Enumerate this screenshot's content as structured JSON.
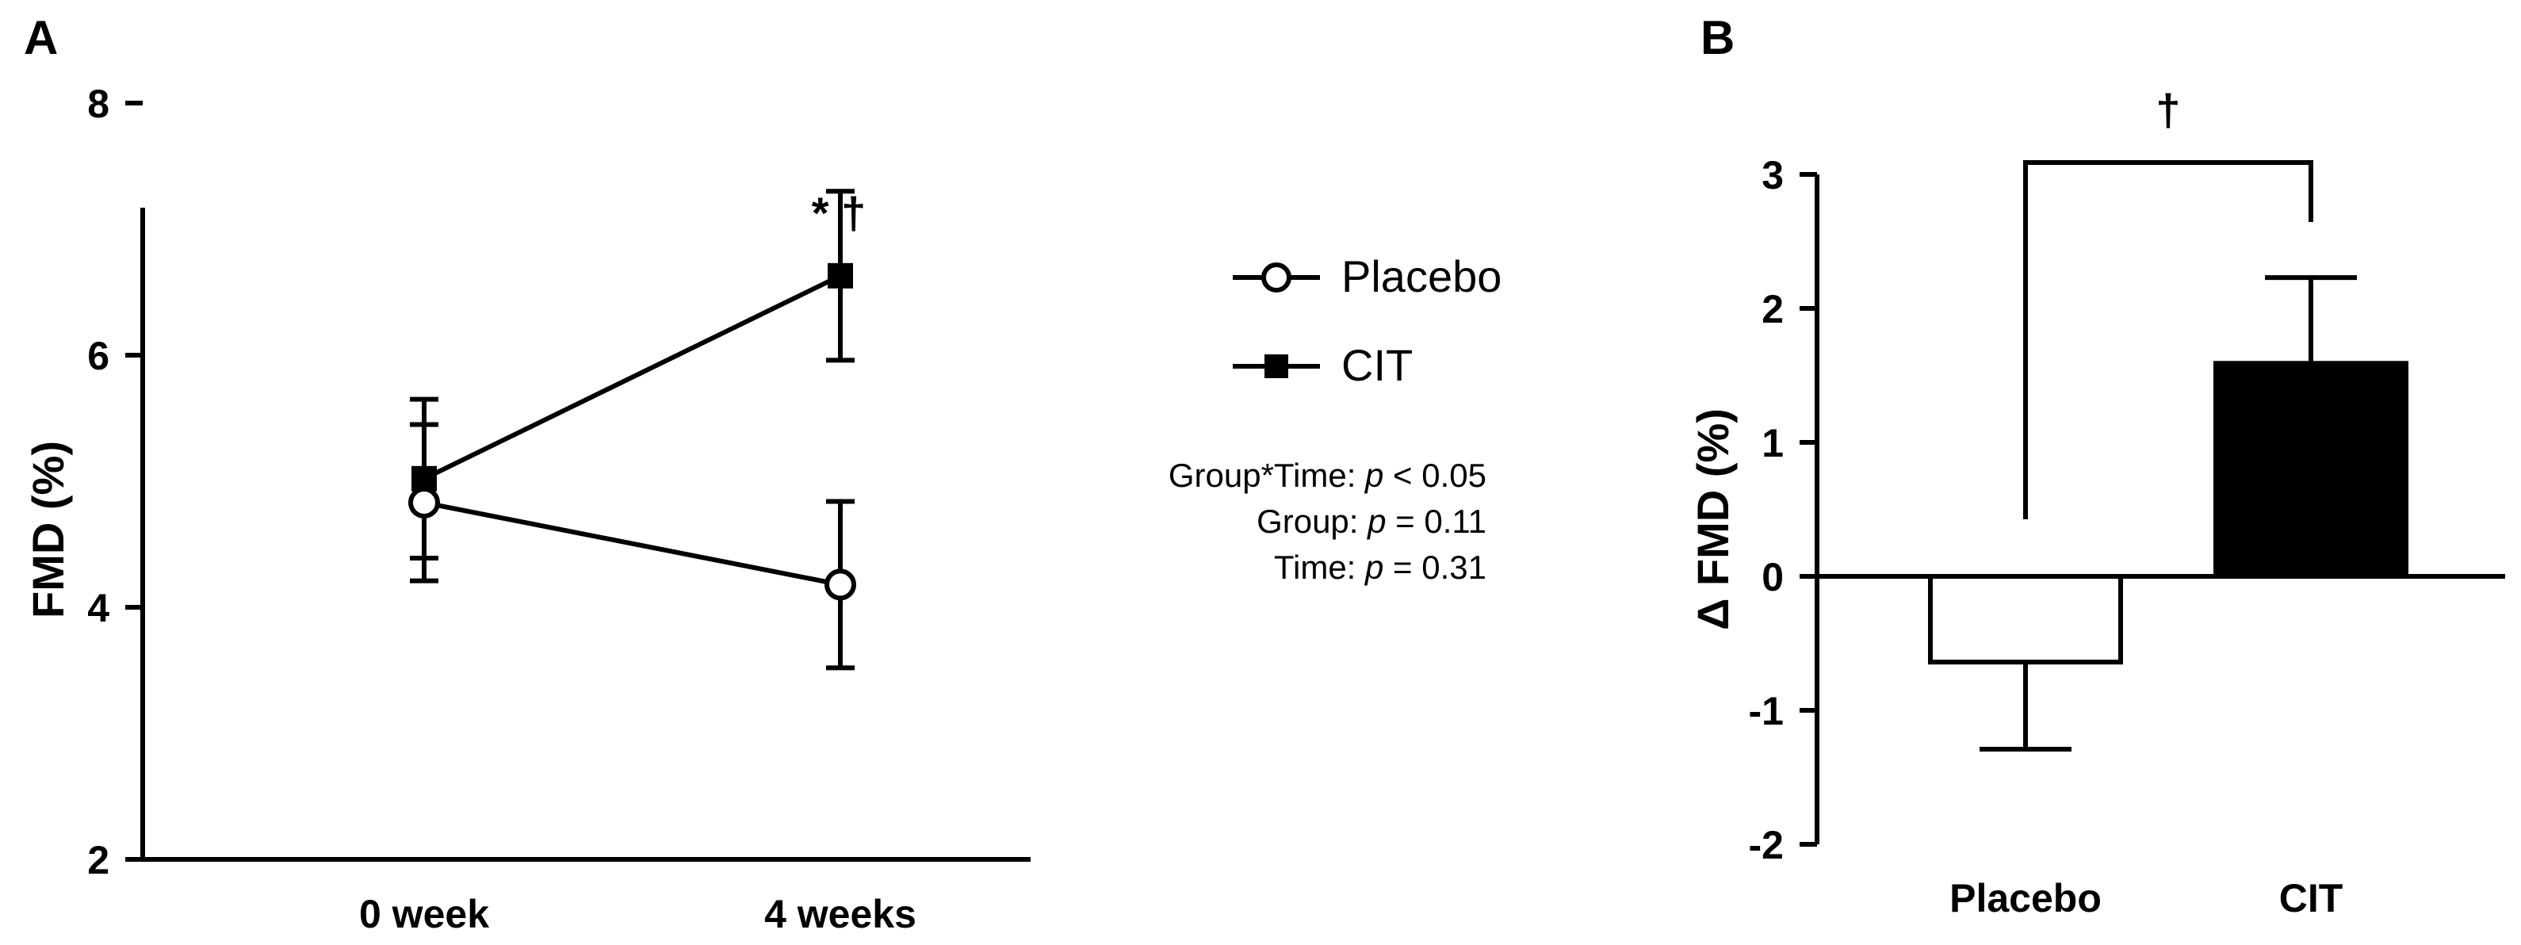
{
  "chart_data": [
    {
      "panel_label": "A",
      "type": "line",
      "ylabel": "FMD (%)",
      "xlabel": "",
      "categories": [
        "0 week",
        "4 weeks"
      ],
      "ylim": [
        2,
        8
      ],
      "yticks": [
        "2",
        "4",
        "6",
        "8"
      ],
      "series": [
        {
          "name": "Placebo",
          "marker": "open-circle",
          "values": [
            4.83,
            4.18
          ],
          "errors": [
            0.62,
            0.66
          ]
        },
        {
          "name": "CIT",
          "marker": "filled-square",
          "values": [
            5.02,
            6.63
          ],
          "errors": [
            0.63,
            0.67
          ]
        }
      ],
      "significance": {
        "marker": "* †"
      },
      "legend": [
        "Placebo",
        "CIT"
      ],
      "stats": [
        {
          "label": "Group*Time: ",
          "p": "p",
          "rest": " < 0.05"
        },
        {
          "label": "Group: ",
          "p": "p",
          "rest": " = 0.11"
        },
        {
          "label": "Time: ",
          "p": "p",
          "rest": " = 0.31"
        }
      ]
    },
    {
      "panel_label": "B",
      "type": "bar",
      "ylabel": "Δ FMD (%)",
      "xlabel": "",
      "categories": [
        "Placebo",
        "CIT"
      ],
      "values": [
        -0.64,
        1.59
      ],
      "errors": [
        0.65,
        0.64
      ],
      "fills": [
        "#ffffff",
        "#000000"
      ],
      "ylim": [
        -2,
        3
      ],
      "yticks": [
        "-2",
        "-1",
        "0",
        "1",
        "2",
        "3"
      ],
      "significance": {
        "marker": "†",
        "between": [
          "Placebo",
          "CIT"
        ]
      }
    }
  ]
}
